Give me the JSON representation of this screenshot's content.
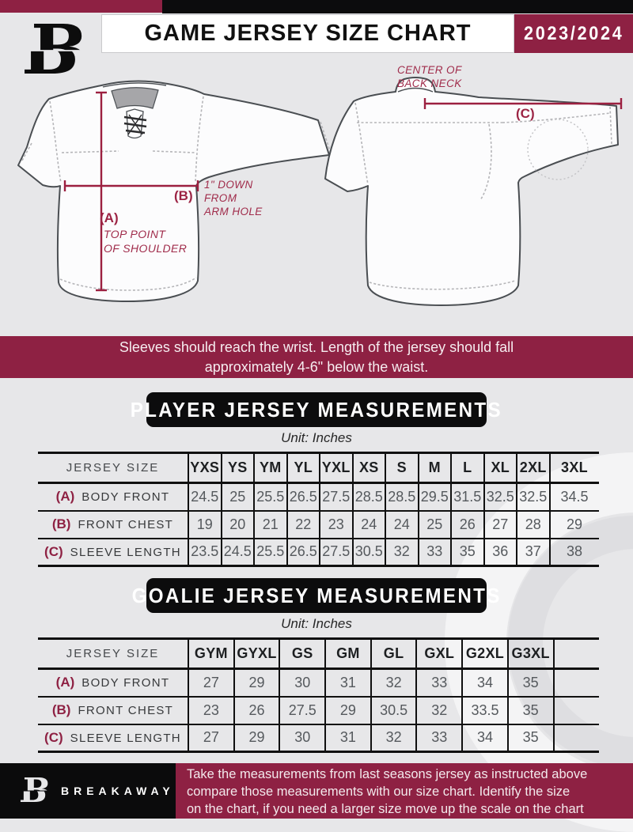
{
  "header": {
    "title": "GAME JERSEY SIZE CHART",
    "season": "2023/2024",
    "logo_letter": "B"
  },
  "diagram": {
    "front": {
      "a_label": "(A)",
      "a_note": [
        "TOP POINT",
        "OF SHOULDER"
      ],
      "b_label": "(B)",
      "b_note": [
        "1\" DOWN",
        "FROM",
        "ARM HOLE"
      ]
    },
    "back": {
      "c_label": "(C)",
      "c_note": [
        "CENTER OF",
        "BACK NECK"
      ]
    }
  },
  "notice": {
    "lines": [
      "Sleeves should reach the wrist. Length of the jersey should fall",
      "approximately 4-6\" below the waist."
    ]
  },
  "player": {
    "banner": "PLAYER JERSEY MEASUREMENTS",
    "unit": "Unit: Inches",
    "corner": "JERSEY SIZE",
    "sizes": [
      "YXS",
      "YS",
      "YM",
      "YL",
      "YXL",
      "XS",
      "S",
      "M",
      "L",
      "XL",
      "2XL",
      "3XL"
    ],
    "rows": [
      {
        "key": "(A)",
        "label": "BODY FRONT",
        "values": [
          "24.5",
          "25",
          "25.5",
          "26.5",
          "27.5",
          "28.5",
          "28.5",
          "29.5",
          "31.5",
          "32.5",
          "32.5",
          "34.5"
        ]
      },
      {
        "key": "(B)",
        "label": "FRONT CHEST",
        "values": [
          "19",
          "20",
          "21",
          "22",
          "23",
          "24",
          "24",
          "25",
          "26",
          "27",
          "28",
          "29"
        ]
      },
      {
        "key": "(C)",
        "label": "SLEEVE LENGTH",
        "values": [
          "23.5",
          "24.5",
          "25.5",
          "26.5",
          "27.5",
          "30.5",
          "32",
          "33",
          "35",
          "36",
          "37",
          "38"
        ]
      }
    ]
  },
  "goalie": {
    "banner": "GOALIE JERSEY MEASUREMENTS",
    "unit": "Unit: Inches",
    "corner": "JERSEY SIZE",
    "sizes": [
      "GYM",
      "GYXL",
      "GS",
      "GM",
      "GL",
      "GXL",
      "G2XL",
      "G3XL",
      ""
    ],
    "rows": [
      {
        "key": "(A)",
        "label": "BODY FRONT",
        "values": [
          "27",
          "29",
          "30",
          "31",
          "32",
          "33",
          "34",
          "35",
          ""
        ]
      },
      {
        "key": "(B)",
        "label": "FRONT CHEST",
        "values": [
          "23",
          "26",
          "27.5",
          "29",
          "30.5",
          "32",
          "33.5",
          "35",
          ""
        ]
      },
      {
        "key": "(C)",
        "label": "SLEEVE LENGTH",
        "values": [
          "27",
          "29",
          "30",
          "31",
          "32",
          "33",
          "34",
          "35",
          ""
        ]
      }
    ]
  },
  "footer": {
    "brand": "BREAKAWAY",
    "logo_letter": "B",
    "lines": [
      "Take the measurements from last seasons jersey as instructed above",
      "compare those measurements  with our size chart. Identify the size",
      "on the chart, if you need a larger size move up the scale on the chart"
    ]
  },
  "colors": {
    "maroon": "#8e2143",
    "black": "#0c0c0d",
    "annotation": "#9c2444",
    "background": "#e7e7e9"
  }
}
